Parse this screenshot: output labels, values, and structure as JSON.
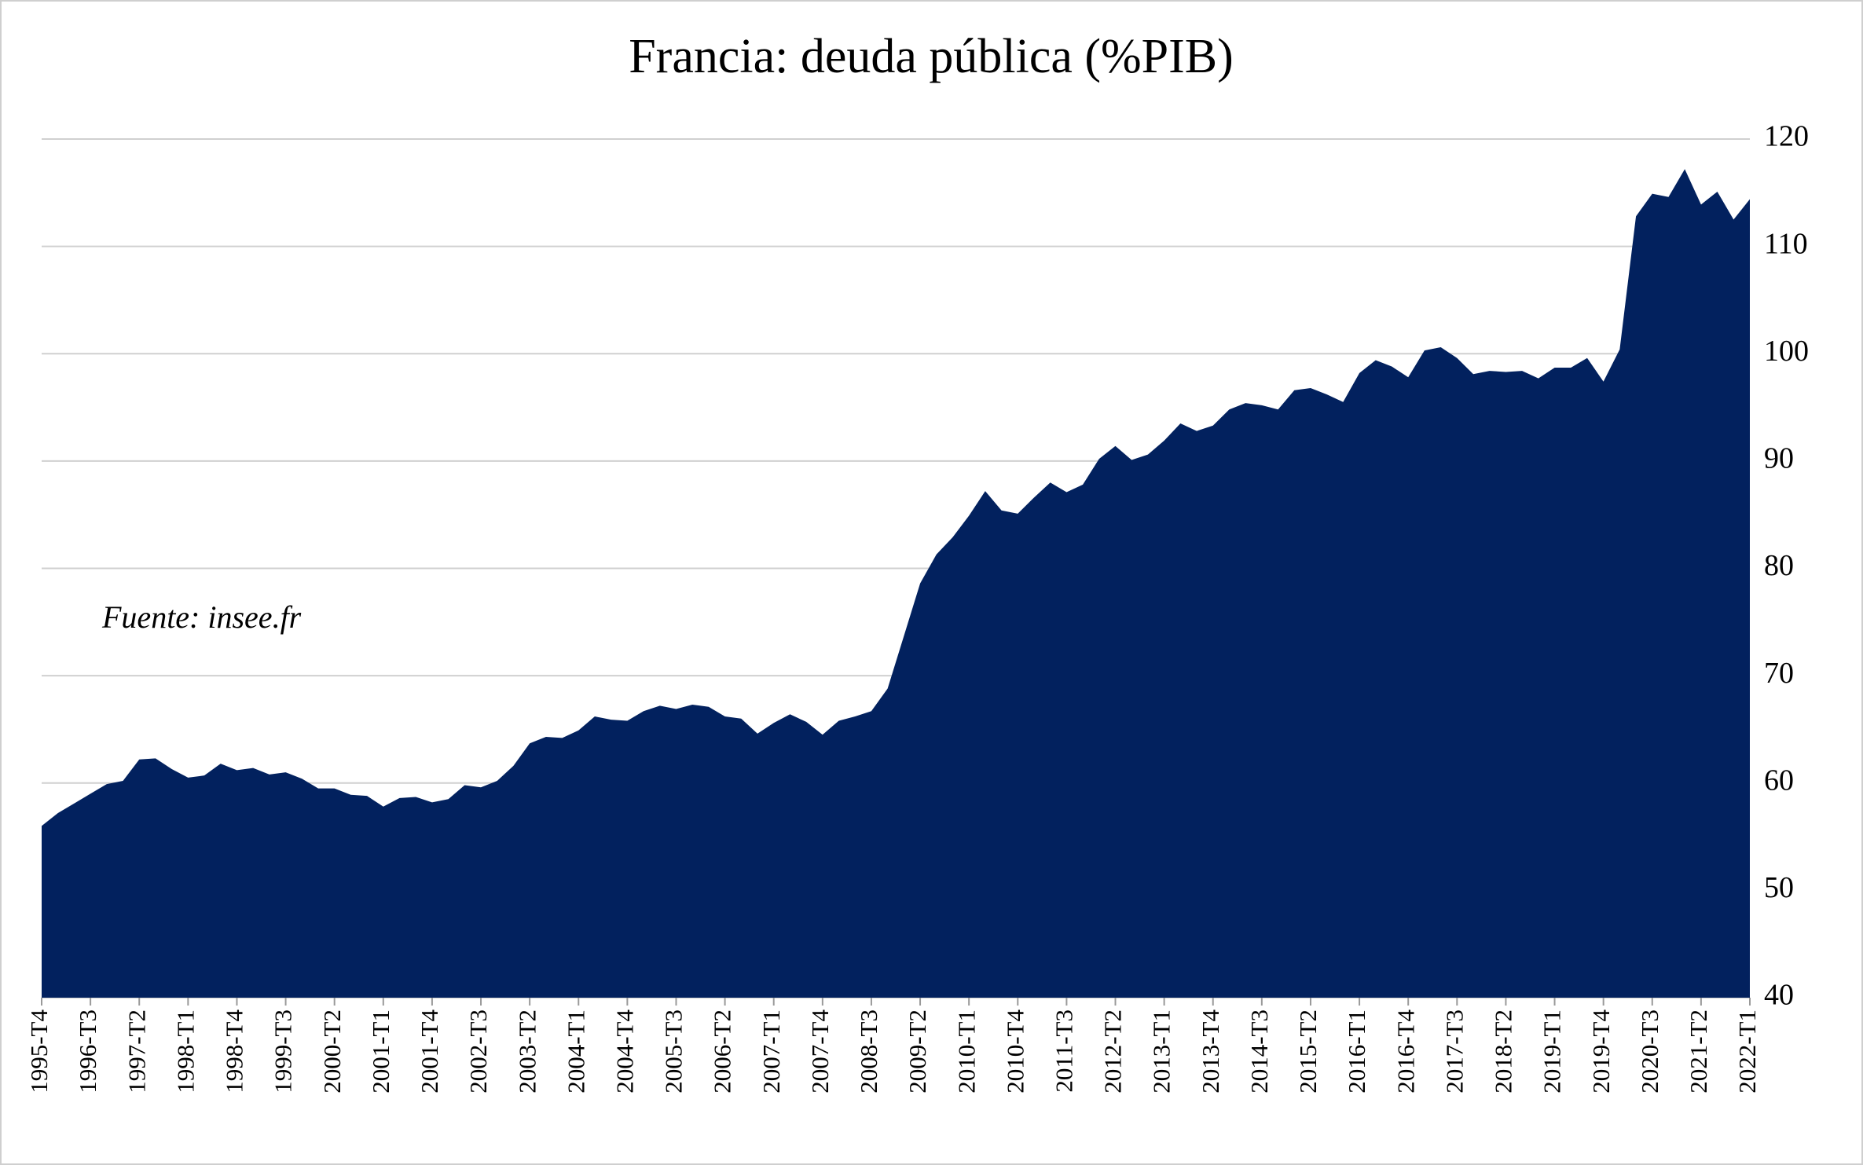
{
  "chart_data": {
    "type": "area",
    "title": "Francia: deuda pública (%PIB)",
    "annotation": "Fuente: insee.fr",
    "categories": [
      "1995-T4",
      null,
      null,
      "1996-T3",
      null,
      null,
      "1997-T2",
      null,
      null,
      "1998-T1",
      null,
      null,
      "1998-T4",
      null,
      null,
      "1999-T3",
      null,
      null,
      "2000-T2",
      null,
      null,
      "2001-T1",
      null,
      null,
      "2001-T4",
      null,
      null,
      "2002-T3",
      null,
      null,
      "2003-T2",
      null,
      null,
      "2004-T1",
      null,
      null,
      "2004-T4",
      null,
      null,
      "2005-T3",
      null,
      null,
      "2006-T2",
      null,
      null,
      "2007-T1",
      null,
      null,
      "2007-T4",
      null,
      null,
      "2008-T3",
      null,
      null,
      "2009-T2",
      null,
      null,
      "2010-T1",
      null,
      null,
      "2010-T4",
      null,
      null,
      "2011-T3",
      null,
      null,
      "2012-T2",
      null,
      null,
      "2013-T1",
      null,
      null,
      "2013-T4",
      null,
      null,
      "2014-T3",
      null,
      null,
      "2015-T2",
      null,
      null,
      "2016-T1",
      null,
      null,
      "2016-T4",
      null,
      null,
      "2017-T3",
      null,
      null,
      "2018-T2",
      null,
      null,
      "2019-T1",
      null,
      null,
      "2019-T4",
      null,
      null,
      "2020-T3",
      null,
      null,
      "2021-T2",
      null,
      null,
      "2022-T1"
    ],
    "values": [
      56.0,
      57.2,
      58.1,
      59.0,
      59.9,
      60.2,
      62.2,
      62.3,
      61.3,
      60.5,
      60.7,
      61.8,
      61.2,
      61.4,
      60.8,
      61.0,
      60.4,
      59.5,
      59.5,
      58.9,
      58.8,
      57.8,
      58.6,
      58.7,
      58.2,
      58.5,
      59.8,
      59.6,
      60.2,
      61.6,
      63.7,
      64.3,
      64.2,
      64.9,
      66.2,
      65.9,
      65.8,
      66.7,
      67.2,
      66.9,
      67.3,
      67.1,
      66.2,
      66.0,
      64.6,
      65.6,
      66.4,
      65.7,
      64.5,
      65.8,
      66.2,
      66.7,
      68.8,
      73.7,
      78.6,
      81.3,
      82.9,
      84.9,
      87.2,
      85.4,
      85.1,
      86.6,
      88.0,
      87.1,
      87.8,
      90.2,
      91.4,
      90.1,
      90.6,
      91.9,
      93.5,
      92.8,
      93.3,
      94.8,
      95.4,
      95.2,
      94.8,
      96.6,
      96.8,
      96.2,
      95.5,
      98.2,
      99.4,
      98.8,
      97.8,
      100.3,
      100.6,
      99.6,
      98.1,
      98.4,
      98.3,
      98.4,
      97.7,
      98.7,
      98.7,
      99.6,
      97.4,
      100.4,
      112.8,
      114.9,
      114.6,
      117.2,
      113.9,
      115.1,
      112.5,
      114.4
    ],
    "color": "#02215e",
    "ylim": [
      40,
      120
    ],
    "yticks": [
      40,
      50,
      60,
      70,
      80,
      90,
      100,
      110,
      120
    ],
    "grid": true
  }
}
